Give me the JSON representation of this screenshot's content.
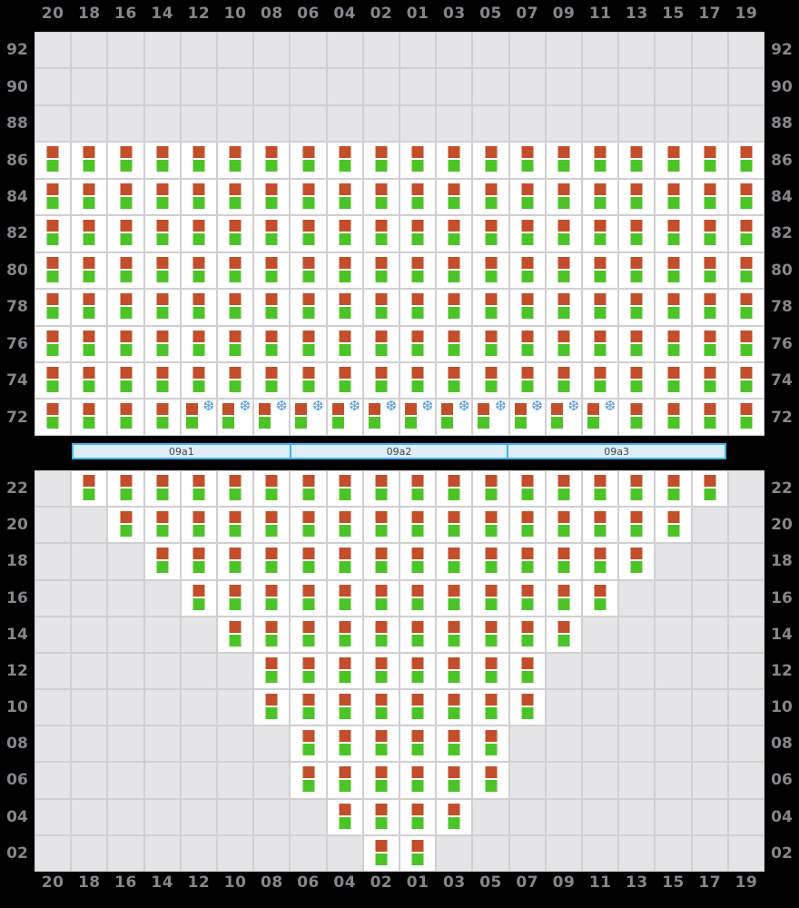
{
  "colors": {
    "page_bg": "#000000",
    "grid_gap": "#d0d0d3",
    "empty_cell": "#e5e5e7",
    "occupied_cell": "#ffffff",
    "top_square": "#c24e2b",
    "bottom_square": "#4cc427",
    "reefer_icon": "#5c9fd8",
    "axis_text": "#86868d",
    "hatch_fill": "#ddedfc",
    "hatch_border": "#3fb4ec"
  },
  "columns": [
    "20",
    "18",
    "16",
    "14",
    "12",
    "10",
    "08",
    "06",
    "04",
    "02",
    "01",
    "03",
    "05",
    "07",
    "09",
    "11",
    "13",
    "15",
    "17",
    "19"
  ],
  "above_deck": {
    "tiers": [
      {
        "tier": "92",
        "occupied": [],
        "reefer": []
      },
      {
        "tier": "90",
        "occupied": [],
        "reefer": []
      },
      {
        "tier": "88",
        "occupied": [],
        "reefer": []
      },
      {
        "tier": "86",
        "occupied": "all",
        "reefer": []
      },
      {
        "tier": "84",
        "occupied": "all",
        "reefer": []
      },
      {
        "tier": "82",
        "occupied": "all",
        "reefer": []
      },
      {
        "tier": "80",
        "occupied": "all",
        "reefer": []
      },
      {
        "tier": "78",
        "occupied": "all",
        "reefer": []
      },
      {
        "tier": "76",
        "occupied": "all",
        "reefer": []
      },
      {
        "tier": "74",
        "occupied": "all",
        "reefer": []
      },
      {
        "tier": "72",
        "occupied": "all",
        "reefer": [
          "12",
          "10",
          "08",
          "06",
          "04",
          "02",
          "01",
          "03",
          "05",
          "07",
          "09",
          "11"
        ]
      }
    ]
  },
  "hatch_covers": {
    "segments": [
      {
        "label": "09a1"
      },
      {
        "label": "09a2"
      },
      {
        "label": "09a3"
      }
    ]
  },
  "below_deck": {
    "tiers": [
      {
        "tier": "22",
        "occupied": [
          "18",
          "16",
          "14",
          "12",
          "10",
          "08",
          "06",
          "04",
          "02",
          "01",
          "03",
          "05",
          "07",
          "09",
          "11",
          "13",
          "15",
          "17"
        ],
        "reefer": []
      },
      {
        "tier": "20",
        "occupied": [
          "16",
          "14",
          "12",
          "10",
          "08",
          "06",
          "04",
          "02",
          "01",
          "03",
          "05",
          "07",
          "09",
          "11",
          "13",
          "15"
        ],
        "reefer": []
      },
      {
        "tier": "18",
        "occupied": [
          "14",
          "12",
          "10",
          "08",
          "06",
          "04",
          "02",
          "01",
          "03",
          "05",
          "07",
          "09",
          "11",
          "13"
        ],
        "reefer": []
      },
      {
        "tier": "16",
        "occupied": [
          "12",
          "10",
          "08",
          "06",
          "04",
          "02",
          "01",
          "03",
          "05",
          "07",
          "09",
          "11"
        ],
        "reefer": []
      },
      {
        "tier": "14",
        "occupied": [
          "10",
          "08",
          "06",
          "04",
          "02",
          "01",
          "03",
          "05",
          "07",
          "09"
        ],
        "reefer": []
      },
      {
        "tier": "12",
        "occupied": [
          "08",
          "06",
          "04",
          "02",
          "01",
          "03",
          "05",
          "07"
        ],
        "reefer": []
      },
      {
        "tier": "10",
        "occupied": [
          "08",
          "06",
          "04",
          "02",
          "01",
          "03",
          "05",
          "07"
        ],
        "reefer": []
      },
      {
        "tier": "08",
        "occupied": [
          "06",
          "04",
          "02",
          "01",
          "03",
          "05"
        ],
        "reefer": []
      },
      {
        "tier": "06",
        "occupied": [
          "06",
          "04",
          "02",
          "01",
          "03",
          "05"
        ],
        "reefer": []
      },
      {
        "tier": "04",
        "occupied": [
          "04",
          "02",
          "01",
          "03"
        ],
        "reefer": []
      },
      {
        "tier": "02",
        "occupied": [
          "02",
          "01"
        ],
        "reefer": []
      }
    ]
  },
  "icons": {
    "reefer_glyph": "❆"
  }
}
